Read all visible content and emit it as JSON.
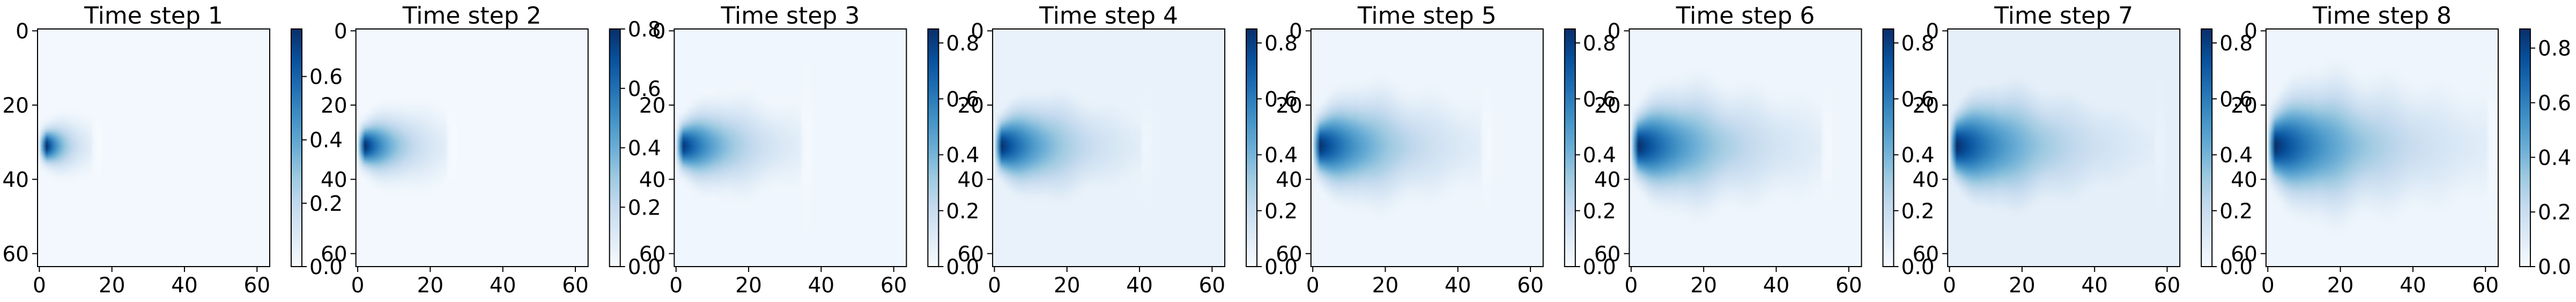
{
  "chart_data": [
    {
      "type": "heatmap",
      "title": "Time step 1",
      "xlim": [
        0,
        63
      ],
      "ylim": [
        63,
        0
      ],
      "xticks": [
        "0",
        "20",
        "40",
        "60"
      ],
      "yticks": [
        "0",
        "20",
        "40",
        "60"
      ],
      "colormap": "Blues",
      "clim": [
        0.0,
        0.75
      ],
      "colorbar_ticks": [
        "0.0",
        "0.2",
        "0.4",
        "0.6"
      ],
      "plume": {
        "source_x": 2,
        "source_y": 31,
        "peak": 0.75,
        "length": 12,
        "half_width": 5,
        "background": 0.02
      }
    },
    {
      "type": "heatmap",
      "title": "Time step 2",
      "xlim": [
        0,
        63
      ],
      "ylim": [
        63,
        0
      ],
      "xticks": [
        "0",
        "20",
        "40",
        "60"
      ],
      "yticks": [
        "0",
        "20",
        "40",
        "60"
      ],
      "colormap": "Blues",
      "clim": [
        0.0,
        0.8
      ],
      "colorbar_ticks": [
        "0.0",
        "0.2",
        "0.4",
        "0.6",
        "0.8"
      ],
      "plume": {
        "source_x": 2,
        "source_y": 31,
        "peak": 0.8,
        "length": 22,
        "half_width": 6,
        "background": 0.02
      }
    },
    {
      "type": "heatmap",
      "title": "Time step 3",
      "xlim": [
        0,
        63
      ],
      "ylim": [
        63,
        0
      ],
      "xticks": [
        "0",
        "20",
        "40",
        "60"
      ],
      "yticks": [
        "0",
        "20",
        "40",
        "60"
      ],
      "colormap": "Blues",
      "clim": [
        0.0,
        0.85
      ],
      "colorbar_ticks": [
        "0.0",
        "0.2",
        "0.4",
        "0.6",
        "0.8"
      ],
      "plume": {
        "source_x": 2,
        "source_y": 31,
        "peak": 0.82,
        "length": 32,
        "half_width": 7,
        "background": 0.03
      }
    },
    {
      "type": "heatmap",
      "title": "Time step 4",
      "xlim": [
        0,
        63
      ],
      "ylim": [
        63,
        0
      ],
      "xticks": [
        "0",
        "20",
        "40",
        "60"
      ],
      "yticks": [
        "0",
        "20",
        "40",
        "60"
      ],
      "colormap": "Blues",
      "clim": [
        0.0,
        0.85
      ],
      "colorbar_ticks": [
        "0.0",
        "0.2",
        "0.4",
        "0.6",
        "0.8"
      ],
      "plume": {
        "source_x": 2,
        "source_y": 31,
        "peak": 0.84,
        "length": 38,
        "half_width": 8,
        "background": 0.06
      }
    },
    {
      "type": "heatmap",
      "title": "Time step 5",
      "xlim": [
        0,
        63
      ],
      "ylim": [
        63,
        0
      ],
      "xticks": [
        "0",
        "20",
        "40",
        "60"
      ],
      "yticks": [
        "0",
        "20",
        "40",
        "60"
      ],
      "colormap": "Blues",
      "clim": [
        0.0,
        0.85
      ],
      "colorbar_ticks": [
        "0.0",
        "0.2",
        "0.4",
        "0.6",
        "0.8"
      ],
      "plume": {
        "source_x": 2,
        "source_y": 31,
        "peak": 0.84,
        "length": 44,
        "half_width": 8.5,
        "background": 0.04
      }
    },
    {
      "type": "heatmap",
      "title": "Time step 6",
      "xlim": [
        0,
        63
      ],
      "ylim": [
        63,
        0
      ],
      "xticks": [
        "0",
        "20",
        "40",
        "60"
      ],
      "yticks": [
        "0",
        "20",
        "40",
        "60"
      ],
      "colormap": "Blues",
      "clim": [
        0.0,
        0.85
      ],
      "colorbar_ticks": [
        "0.0",
        "0.2",
        "0.4",
        "0.6",
        "0.8"
      ],
      "plume": {
        "source_x": 2,
        "source_y": 31,
        "peak": 0.85,
        "length": 50,
        "half_width": 9,
        "background": 0.04
      }
    },
    {
      "type": "heatmap",
      "title": "Time step 7",
      "xlim": [
        0,
        63
      ],
      "ylim": [
        63,
        0
      ],
      "xticks": [
        "0",
        "20",
        "40",
        "60"
      ],
      "yticks": [
        "0",
        "20",
        "40",
        "60"
      ],
      "colormap": "Blues",
      "clim": [
        0.0,
        0.85
      ],
      "colorbar_ticks": [
        "0.0",
        "0.2",
        "0.4",
        "0.6",
        "0.8"
      ],
      "plume": {
        "source_x": 2,
        "source_y": 31,
        "peak": 0.85,
        "length": 54,
        "half_width": 9.5,
        "background": 0.08
      }
    },
    {
      "type": "heatmap",
      "title": "Time step 8",
      "xlim": [
        0,
        63
      ],
      "ylim": [
        63,
        0
      ],
      "xticks": [
        "0",
        "20",
        "40",
        "60"
      ],
      "yticks": [
        "0",
        "20",
        "40",
        "60"
      ],
      "colormap": "Blues",
      "clim": [
        0.0,
        0.87
      ],
      "colorbar_ticks": [
        "0.0",
        "0.2",
        "0.4",
        "0.6",
        "0.8"
      ],
      "plume": {
        "source_x": 2,
        "source_y": 31,
        "peak": 0.87,
        "length": 58,
        "half_width": 10,
        "background": 0.04
      }
    }
  ]
}
